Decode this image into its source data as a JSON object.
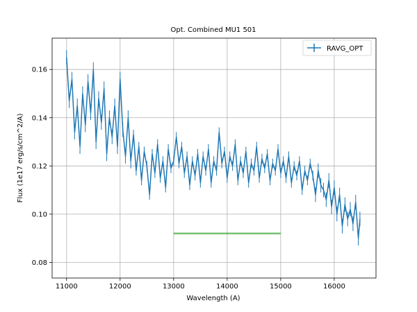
{
  "chart_data": {
    "type": "line",
    "title": "Opt. Combined MU1 501",
    "xlabel": "Wavelength (A)",
    "ylabel": "Flux (1e17 erg/s/cm^2/A)",
    "xlim": [
      10730,
      16780
    ],
    "ylim": [
      0.0735,
      0.173
    ],
    "xticks": [
      11000,
      12000,
      13000,
      14000,
      15000,
      16000
    ],
    "yticks": [
      0.08,
      0.1,
      0.12,
      0.14,
      0.16
    ],
    "grid": true,
    "legend_position": "top-right",
    "series": [
      {
        "name": "RAVG_OPT",
        "color": "#1f77b4",
        "style": "line-with-error-bars",
        "x": [
          11000,
          11050,
          11100,
          11150,
          11200,
          11250,
          11300,
          11350,
          11400,
          11450,
          11500,
          11550,
          11600,
          11650,
          11700,
          11750,
          11800,
          11850,
          11900,
          11950,
          12000,
          12050,
          12100,
          12150,
          12200,
          12250,
          12300,
          12350,
          12400,
          12450,
          12500,
          12550,
          12600,
          12650,
          12700,
          12750,
          12800,
          12850,
          12900,
          12950,
          13000,
          13050,
          13100,
          13150,
          13200,
          13250,
          13300,
          13350,
          13400,
          13450,
          13500,
          13550,
          13600,
          13650,
          13700,
          13750,
          13800,
          13850,
          13900,
          13950,
          14000,
          14050,
          14100,
          14150,
          14200,
          14250,
          14300,
          14350,
          14400,
          14450,
          14500,
          14550,
          14600,
          14650,
          14700,
          14750,
          14800,
          14850,
          14900,
          14950,
          15000,
          15050,
          15100,
          15150,
          15200,
          15250,
          15300,
          15350,
          15400,
          15450,
          15500,
          15550,
          15600,
          15650,
          15700,
          15750,
          15800,
          15850,
          15900,
          15950,
          16000,
          16050,
          16100,
          16150,
          16200,
          16250,
          16300,
          16350,
          16400,
          16450,
          16480
        ],
        "y": [
          0.165,
          0.147,
          0.156,
          0.134,
          0.145,
          0.128,
          0.15,
          0.137,
          0.155,
          0.142,
          0.16,
          0.13,
          0.148,
          0.138,
          0.152,
          0.125,
          0.14,
          0.132,
          0.145,
          0.128,
          0.156,
          0.135,
          0.124,
          0.14,
          0.122,
          0.133,
          0.118,
          0.128,
          0.114,
          0.126,
          0.12,
          0.108,
          0.125,
          0.117,
          0.129,
          0.115,
          0.122,
          0.111,
          0.127,
          0.119,
          0.122,
          0.132,
          0.121,
          0.128,
          0.117,
          0.124,
          0.112,
          0.122,
          0.116,
          0.125,
          0.113,
          0.124,
          0.118,
          0.127,
          0.113,
          0.122,
          0.118,
          0.134,
          0.121,
          0.126,
          0.115,
          0.124,
          0.12,
          0.129,
          0.114,
          0.122,
          0.117,
          0.126,
          0.113,
          0.121,
          0.118,
          0.128,
          0.115,
          0.123,
          0.119,
          0.125,
          0.114,
          0.121,
          0.118,
          0.127,
          0.117,
          0.122,
          0.115,
          0.124,
          0.113,
          0.12,
          0.116,
          0.122,
          0.11,
          0.118,
          0.114,
          0.121,
          0.116,
          0.108,
          0.118,
          0.112,
          0.11,
          0.106,
          0.114,
          0.103,
          0.111,
          0.1,
          0.108,
          0.095,
          0.104,
          0.098,
          0.102,
          0.096,
          0.105,
          0.09,
          0.098
        ],
        "errors": [
          0.003,
          0.003,
          0.003,
          0.003,
          0.003,
          0.003,
          0.003,
          0.003,
          0.003,
          0.003,
          0.003,
          0.003,
          0.003,
          0.003,
          0.003,
          0.003,
          0.003,
          0.003,
          0.003,
          0.003,
          0.003,
          0.003,
          0.003,
          0.003,
          0.003,
          0.002,
          0.002,
          0.002,
          0.002,
          0.002,
          0.002,
          0.002,
          0.002,
          0.002,
          0.002,
          0.002,
          0.002,
          0.002,
          0.002,
          0.002,
          0.002,
          0.002,
          0.002,
          0.002,
          0.002,
          0.002,
          0.002,
          0.002,
          0.002,
          0.002,
          0.002,
          0.002,
          0.002,
          0.002,
          0.002,
          0.002,
          0.002,
          0.002,
          0.002,
          0.002,
          0.002,
          0.002,
          0.002,
          0.002,
          0.002,
          0.002,
          0.002,
          0.002,
          0.002,
          0.002,
          0.002,
          0.002,
          0.002,
          0.002,
          0.002,
          0.002,
          0.002,
          0.002,
          0.002,
          0.002,
          0.002,
          0.002,
          0.002,
          0.002,
          0.002,
          0.002,
          0.002,
          0.002,
          0.002,
          0.002,
          0.002,
          0.002,
          0.002,
          0.003,
          0.003,
          0.003,
          0.003,
          0.003,
          0.003,
          0.003,
          0.003,
          0.003,
          0.003,
          0.003,
          0.003,
          0.003,
          0.003,
          0.003,
          0.003,
          0.003,
          0.003
        ]
      },
      {
        "color": "#2ca02c",
        "style": "horizontal-segment",
        "x": [
          13000,
          15000
        ],
        "y": [
          0.092,
          0.092
        ]
      }
    ],
    "legend": [
      "RAVG_OPT"
    ]
  }
}
